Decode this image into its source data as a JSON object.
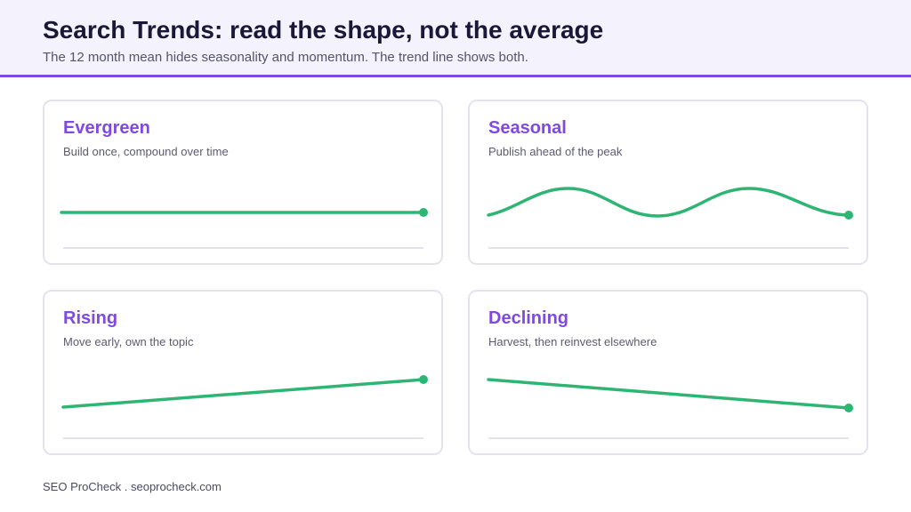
{
  "header": {
    "title": "Search Trends: read the shape, not the average",
    "subtitle": "The 12 month mean hides seasonality and momentum. The trend line shows both."
  },
  "colors": {
    "accent": "#8049e0",
    "trend_line": "#2fb573",
    "header_bg": "#f3f2fd",
    "card_border": "#e3e3ee",
    "baseline": "#d9d9e6"
  },
  "cards": [
    {
      "title": "Evergreen",
      "subtitle": "Build once, compound over time",
      "shape": "flat"
    },
    {
      "title": "Seasonal",
      "subtitle": "Publish ahead of the peak",
      "shape": "wave"
    },
    {
      "title": "Rising",
      "subtitle": "Move early, own the topic",
      "shape": "rising"
    },
    {
      "title": "Declining",
      "subtitle": "Harvest, then reinvest elsewhere",
      "shape": "declining"
    }
  ],
  "footer": {
    "text": "SEO ProCheck . seoprocheck.com"
  }
}
